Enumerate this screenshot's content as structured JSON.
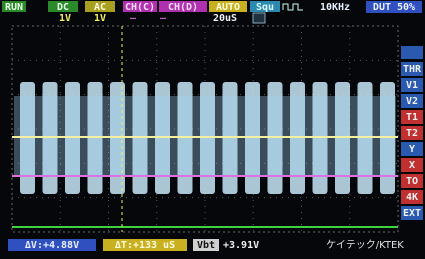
{
  "status_bar": {
    "run": "RUN",
    "coupling_a": "DC",
    "coupling_b": "AC",
    "channel_c": "CH(C)",
    "channel_d": "CH(D)",
    "trigger": "AUTO",
    "wave": "Squ",
    "frequency": "10KHz",
    "duty": "DUT 50%"
  },
  "scale_bar": {
    "volts_a": "1V",
    "volts_b": "1V",
    "timebase": "20uS"
  },
  "menu": [
    "THR",
    "V1",
    "V2",
    "T1",
    "T2",
    "Y",
    "X",
    "TO",
    "4K",
    "EXT"
  ],
  "footer": {
    "delta_v": "ΔV:+4.88V",
    "delta_t": "ΔT:+133 uS",
    "vbt_label": "Vbt",
    "vbt_value": "+3.91V",
    "brand": "ケイテック/KTEK"
  }
}
